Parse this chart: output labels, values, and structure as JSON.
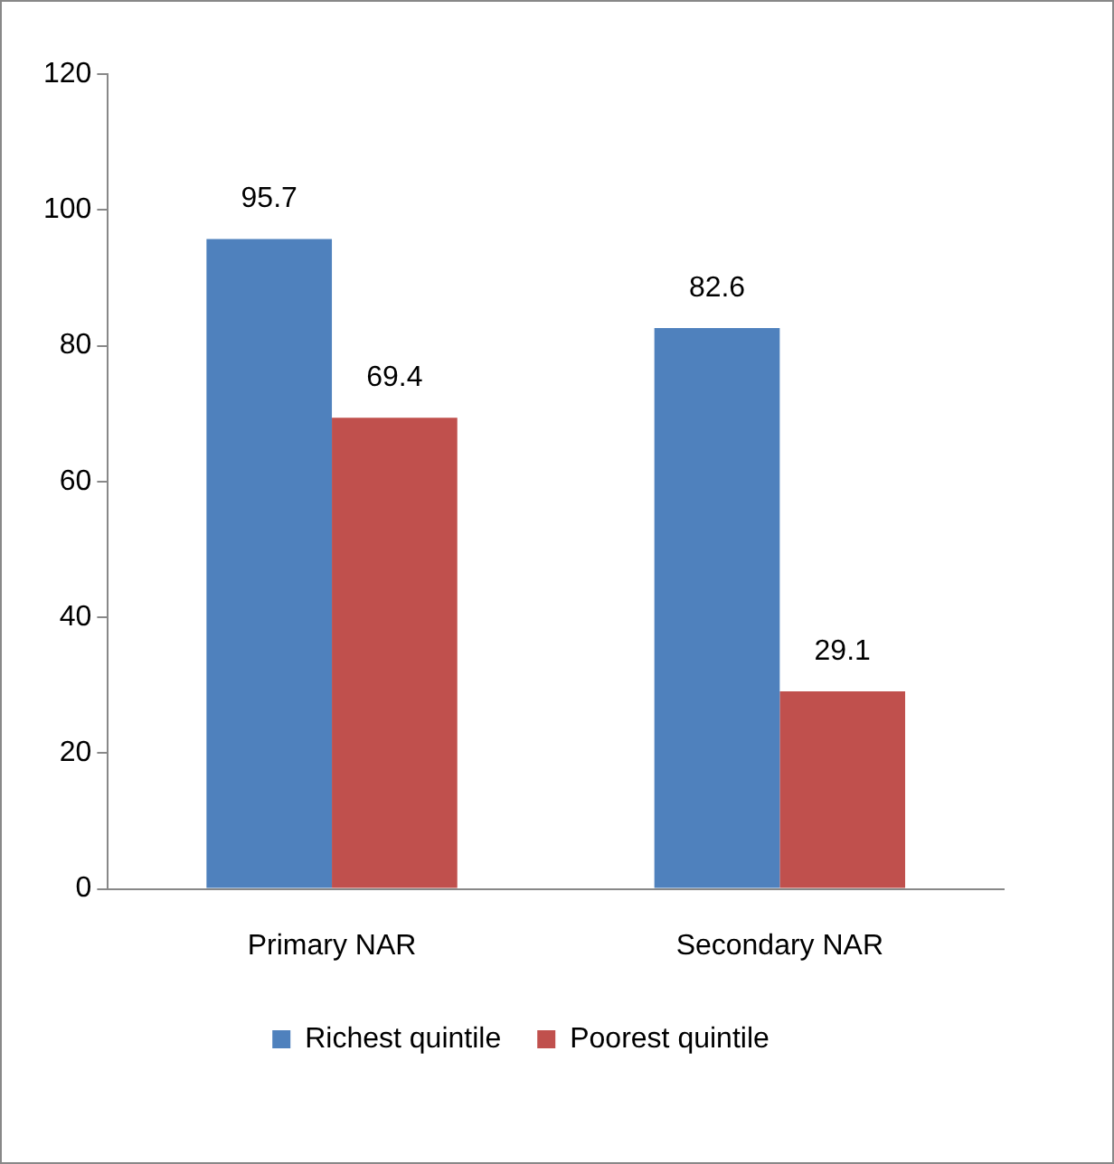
{
  "chart_data": {
    "type": "bar",
    "categories": [
      "Primary NAR",
      "Secondary NAR"
    ],
    "series": [
      {
        "name": "Richest quintile",
        "color": "#4f81bd",
        "values": [
          95.7,
          82.6
        ]
      },
      {
        "name": "Poorest quintile",
        "color": "#c0504d",
        "values": [
          69.4,
          29.1
        ]
      }
    ],
    "ylim": [
      0,
      120
    ],
    "yticks": [
      0,
      20,
      40,
      60,
      80,
      100,
      120
    ],
    "grid": false,
    "legend": "bottom",
    "data_labels": true
  }
}
